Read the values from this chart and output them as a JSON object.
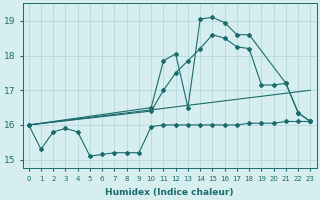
{
  "background_color": "#d6eef0",
  "grid_color": "#b8d8dc",
  "line_color": "#1a6b6b",
  "xlim": [
    -0.5,
    23.5
  ],
  "ylim": [
    14.75,
    19.5
  ],
  "xticks": [
    0,
    1,
    2,
    3,
    4,
    5,
    6,
    7,
    8,
    9,
    10,
    11,
    12,
    13,
    14,
    15,
    16,
    17,
    18,
    19,
    20,
    21,
    22,
    23
  ],
  "yticks": [
    15,
    16,
    17,
    18,
    19
  ],
  "xlabel": "Humidex (Indice chaleur)",
  "series1_x": [
    0,
    1,
    2,
    3,
    4,
    5,
    6,
    7,
    8,
    9,
    10,
    11,
    12,
    13,
    14,
    15,
    16,
    17,
    18,
    19,
    20,
    21,
    22,
    23
  ],
  "series1_y": [
    16.0,
    15.3,
    15.8,
    15.9,
    15.8,
    15.1,
    15.15,
    15.2,
    15.2,
    15.2,
    15.95,
    16.0,
    16.0,
    16.0,
    16.0,
    16.0,
    16.0,
    16.0,
    16.05,
    16.05,
    16.05,
    16.1,
    16.1,
    16.1
  ],
  "series2_x": [
    0,
    10,
    11,
    12,
    13,
    14,
    15,
    16,
    17,
    18,
    21,
    22,
    23
  ],
  "series2_y": [
    16.0,
    16.5,
    17.85,
    18.05,
    16.5,
    19.05,
    19.1,
    18.95,
    18.6,
    18.6,
    17.2,
    16.35,
    16.1
  ],
  "series3_x": [
    0,
    10,
    11,
    12,
    13,
    14,
    15,
    16,
    17,
    18,
    19,
    20,
    21,
    22,
    23
  ],
  "series3_y": [
    16.0,
    16.4,
    17.0,
    17.5,
    17.85,
    18.2,
    18.6,
    18.5,
    18.25,
    18.2,
    17.15,
    17.15,
    17.2,
    16.35,
    16.1
  ],
  "series4_x": [
    0,
    23
  ],
  "series4_y": [
    16.0,
    17.0
  ]
}
